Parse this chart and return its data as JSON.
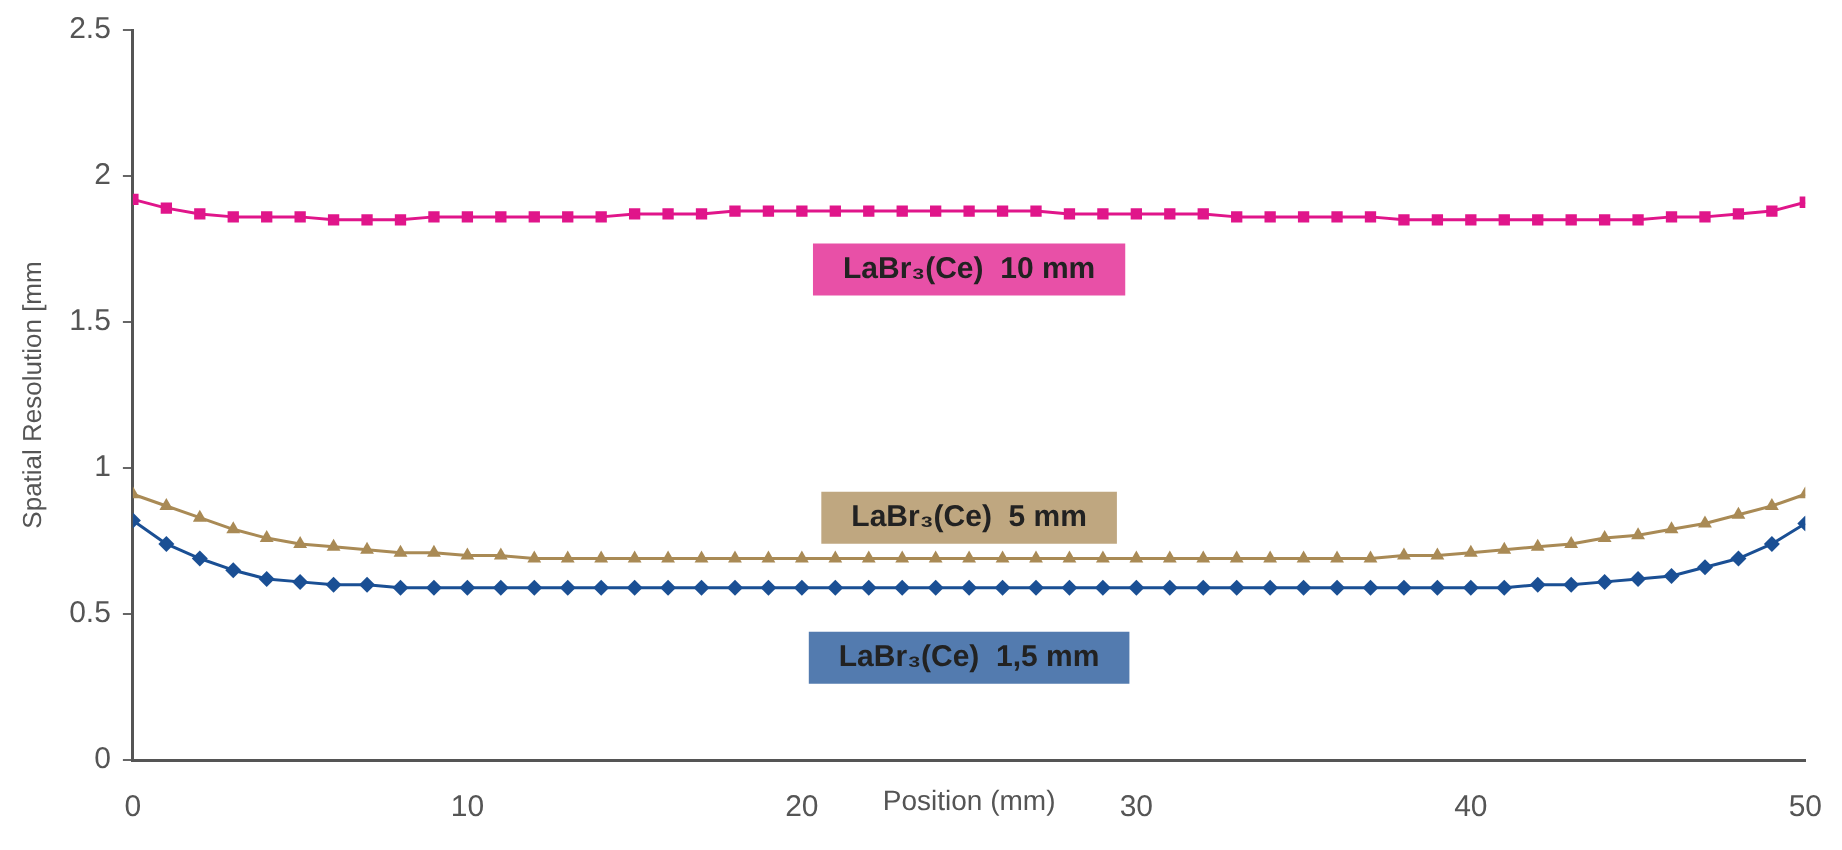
{
  "chart_data": {
    "type": "line",
    "xlabel": "Position (mm)",
    "ylabel": "Spatial Resolution [mm",
    "xlim": [
      0,
      50
    ],
    "xticks": [
      0,
      10,
      20,
      30,
      40,
      50
    ],
    "ylim": [
      0,
      2.5
    ],
    "yticks": [
      0,
      0.5,
      1,
      1.5,
      2,
      2.5
    ],
    "grid": false,
    "legend": false,
    "x": [
      0,
      1,
      2,
      3,
      4,
      5,
      6,
      7,
      8,
      9,
      10,
      11,
      12,
      13,
      14,
      15,
      16,
      17,
      18,
      19,
      20,
      21,
      22,
      23,
      24,
      25,
      26,
      27,
      28,
      29,
      30,
      31,
      32,
      33,
      34,
      35,
      36,
      37,
      38,
      39,
      40,
      41,
      42,
      43,
      44,
      45,
      46,
      47,
      48,
      49,
      50
    ],
    "series": [
      {
        "name": "LaBr₃(Ce)  10 mm",
        "color": "#e0158a",
        "marker": "square",
        "values": [
          1.92,
          1.89,
          1.87,
          1.86,
          1.86,
          1.86,
          1.85,
          1.85,
          1.85,
          1.86,
          1.86,
          1.86,
          1.86,
          1.86,
          1.86,
          1.87,
          1.87,
          1.87,
          1.88,
          1.88,
          1.88,
          1.88,
          1.88,
          1.88,
          1.88,
          1.88,
          1.88,
          1.88,
          1.87,
          1.87,
          1.87,
          1.87,
          1.87,
          1.86,
          1.86,
          1.86,
          1.86,
          1.86,
          1.85,
          1.85,
          1.85,
          1.85,
          1.85,
          1.85,
          1.85,
          1.85,
          1.86,
          1.86,
          1.87,
          1.88,
          1.91
        ]
      },
      {
        "name": "LaBr₃(Ce)  5 mm",
        "color": "#a98a55",
        "marker": "triangle",
        "values": [
          0.91,
          0.87,
          0.83,
          0.79,
          0.76,
          0.74,
          0.73,
          0.72,
          0.71,
          0.71,
          0.7,
          0.7,
          0.69,
          0.69,
          0.69,
          0.69,
          0.69,
          0.69,
          0.69,
          0.69,
          0.69,
          0.69,
          0.69,
          0.69,
          0.69,
          0.69,
          0.69,
          0.69,
          0.69,
          0.69,
          0.69,
          0.69,
          0.69,
          0.69,
          0.69,
          0.69,
          0.69,
          0.69,
          0.7,
          0.7,
          0.71,
          0.72,
          0.73,
          0.74,
          0.76,
          0.77,
          0.79,
          0.81,
          0.84,
          0.87,
          0.91
        ]
      },
      {
        "name": "LaBr₃(Ce)  1,5 mm",
        "color": "#1a4f94",
        "marker": "diamond",
        "values": [
          0.82,
          0.74,
          0.69,
          0.65,
          0.62,
          0.61,
          0.6,
          0.6,
          0.59,
          0.59,
          0.59,
          0.59,
          0.59,
          0.59,
          0.59,
          0.59,
          0.59,
          0.59,
          0.59,
          0.59,
          0.59,
          0.59,
          0.59,
          0.59,
          0.59,
          0.59,
          0.59,
          0.59,
          0.59,
          0.59,
          0.59,
          0.59,
          0.59,
          0.59,
          0.59,
          0.59,
          0.59,
          0.59,
          0.59,
          0.59,
          0.59,
          0.59,
          0.6,
          0.6,
          0.61,
          0.62,
          0.63,
          0.66,
          0.69,
          0.74,
          0.81
        ]
      }
    ]
  }
}
